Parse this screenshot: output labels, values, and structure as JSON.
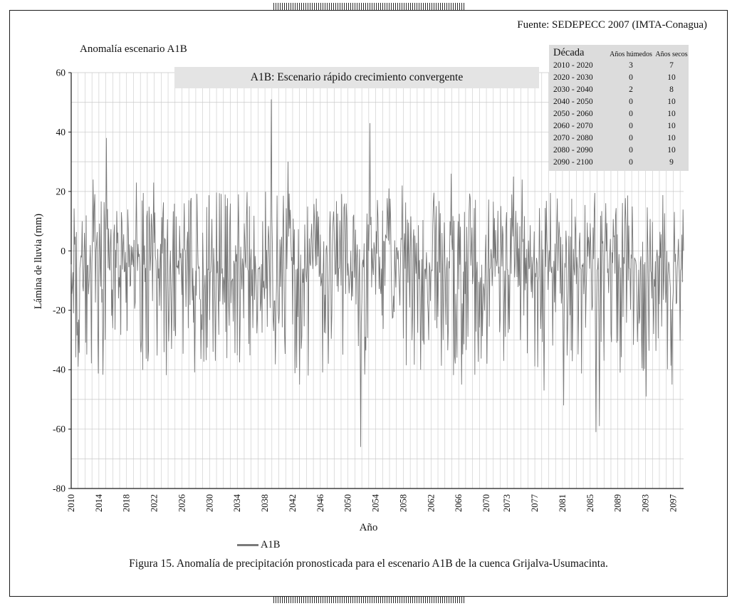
{
  "page": {
    "source": "Fuente: SEDEPECC 2007 (IMTA-Conagua)",
    "caption": "Figura 15. Anomalía de precipitación pronosticada para el escenario A1B de la cuenca Grijalva-Usumacinta."
  },
  "chart_data": {
    "type": "line",
    "title": "Anomalía escenario A1B",
    "banner": "A1B: Escenario rápido crecimiento convergente",
    "xlabel": "Año",
    "ylabel": "Lámina de lluvia (mm)",
    "ylim": [
      -80,
      60
    ],
    "ytick_step": 20,
    "grid": true,
    "grid_color": "#c8c8c8",
    "line_color": "#767676",
    "xlim": [
      2010,
      2098.5
    ],
    "xticks": [
      2010,
      2014,
      2018,
      2022,
      2026,
      2030,
      2034,
      2038,
      2042,
      2046,
      2050,
      2054,
      2058,
      2062,
      2066,
      2070,
      2073,
      2077,
      2081,
      2085,
      2089,
      2093,
      2097
    ],
    "xtick_labels": [
      "2010",
      "2014",
      "2018",
      "2022",
      "2026",
      "2030",
      "2034",
      "2038",
      "2042",
      "2046",
      "2050",
      "2054",
      "2058",
      "2062",
      "2066",
      "2070",
      "2073",
      "2077",
      "2081",
      "2085",
      "2089",
      "2093",
      "2097"
    ],
    "legend": [
      {
        "label": "A1B",
        "color": "#7a7a7a"
      }
    ],
    "series_synthesis": {
      "note": "Dense monthly precipitation-anomaly series 2010-2098 estimated from pixels; mostly oscillates between +20 and -40 mm around a slightly negative baseline, reproduced with seeded noise plus the observed extreme spikes.",
      "seed": 20100101,
      "points_per_year": 12,
      "year_start": 2010,
      "year_end": 2098.5,
      "baseline": -6,
      "up_amp": 26,
      "down_amp": 36,
      "extremes": [
        {
          "year": 2013.2,
          "value": 24
        },
        {
          "year": 2015.1,
          "value": 38
        },
        {
          "year": 2016.0,
          "value": -26
        },
        {
          "year": 2019.4,
          "value": 23
        },
        {
          "year": 2021.9,
          "value": 23
        },
        {
          "year": 2024.5,
          "value": -33
        },
        {
          "year": 2026.3,
          "value": 16
        },
        {
          "year": 2030.8,
          "value": -37
        },
        {
          "year": 2034.2,
          "value": 19
        },
        {
          "year": 2038.9,
          "value": 51
        },
        {
          "year": 2041.3,
          "value": 30
        },
        {
          "year": 2043.0,
          "value": -45
        },
        {
          "year": 2047.2,
          "value": -38
        },
        {
          "year": 2051.8,
          "value": -66
        },
        {
          "year": 2053.2,
          "value": 43
        },
        {
          "year": 2055.9,
          "value": 21
        },
        {
          "year": 2057.8,
          "value": 22
        },
        {
          "year": 2060.5,
          "value": -40
        },
        {
          "year": 2064.9,
          "value": 26
        },
        {
          "year": 2066.4,
          "value": -45
        },
        {
          "year": 2070.1,
          "value": -38
        },
        {
          "year": 2073.9,
          "value": 25
        },
        {
          "year": 2075.2,
          "value": 24
        },
        {
          "year": 2078.3,
          "value": -47
        },
        {
          "year": 2081.2,
          "value": -52
        },
        {
          "year": 2085.8,
          "value": -61
        },
        {
          "year": 2086.3,
          "value": -59
        },
        {
          "year": 2093.1,
          "value": -49
        },
        {
          "year": 2096.8,
          "value": -45
        }
      ]
    }
  },
  "table": {
    "headers": [
      "Década",
      "Años húmedos",
      "Años secos"
    ],
    "rows": [
      [
        "2010 - 2020",
        "3",
        "7"
      ],
      [
        "2020 - 2030",
        "0",
        "10"
      ],
      [
        "2030 - 2040",
        "2",
        "8"
      ],
      [
        "2040 - 2050",
        "0",
        "10"
      ],
      [
        "2050 - 2060",
        "0",
        "10"
      ],
      [
        "2060 - 2070",
        "0",
        "10"
      ],
      [
        "2070 - 2080",
        "0",
        "10"
      ],
      [
        "2080 - 2090",
        "0",
        "10"
      ],
      [
        "2090 - 2100",
        "0",
        "9"
      ]
    ]
  }
}
